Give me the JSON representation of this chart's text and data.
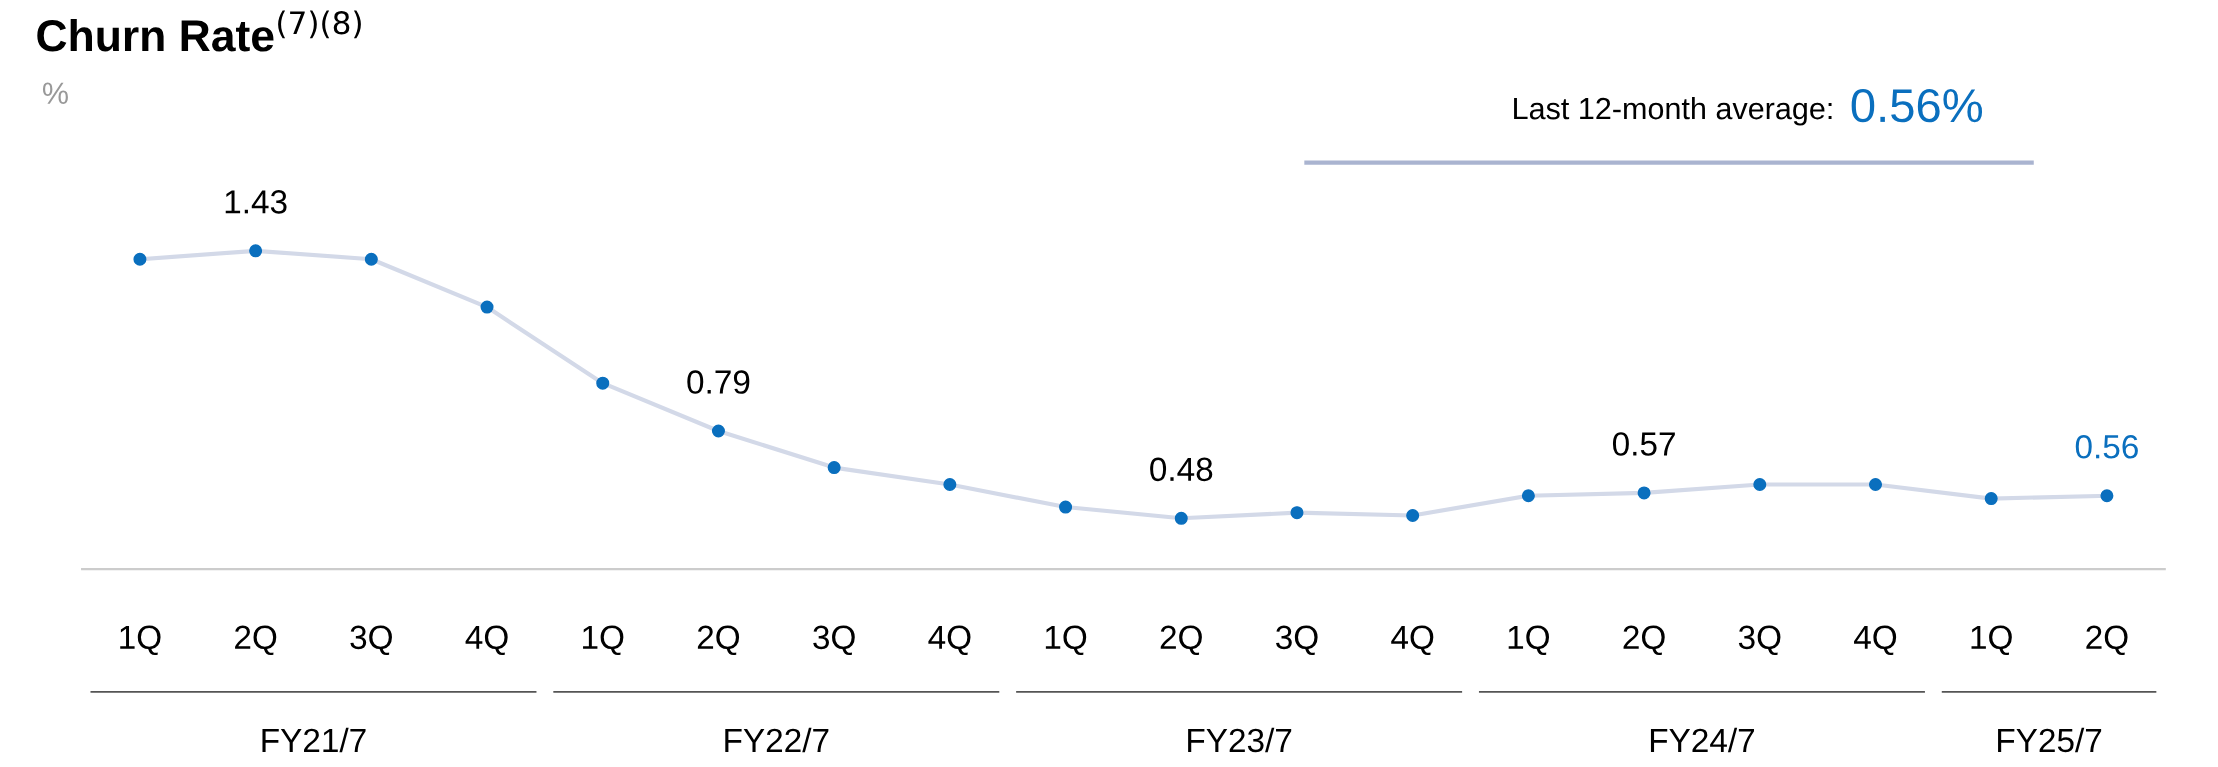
{
  "chart_data": {
    "type": "line",
    "title": "Churn Rate$^{(7)(8)}$",
    "ylabel": "%",
    "categories": [
      "1Q",
      "2Q",
      "3Q",
      "4Q",
      "1Q",
      "2Q",
      "3Q",
      "4Q",
      "1Q",
      "2Q",
      "3Q",
      "4Q",
      "1Q",
      "2Q",
      "3Q",
      "4Q",
      "1Q",
      "2Q"
    ],
    "series": [
      {
        "color": "#0a6fbe",
        "values": [
          1.4,
          1.43,
          1.4,
          1.23,
          0.96,
          0.79,
          0.66,
          0.6,
          0.52,
          0.48,
          0.5,
          0.49,
          0.56,
          0.57,
          0.6,
          0.6,
          0.55,
          0.56
        ],
        "value_labels": [
          null,
          "1.43",
          null,
          null,
          null,
          "0.79",
          null,
          null,
          null,
          "0.48",
          null,
          null,
          null,
          "0.57",
          null,
          null,
          null,
          "0.56"
        ]
      }
    ],
    "tick_labels": "x",
    "marker": "circle",
    "line_style": "solid",
    "legend": false,
    "grid": false,
    "annotations": [
      "Last 12-month average:",
      "0.56%",
      "FY21/7",
      "FY22/7",
      "FY23/7",
      "FY24/7",
      "FY25/7"
    ]
  }
}
